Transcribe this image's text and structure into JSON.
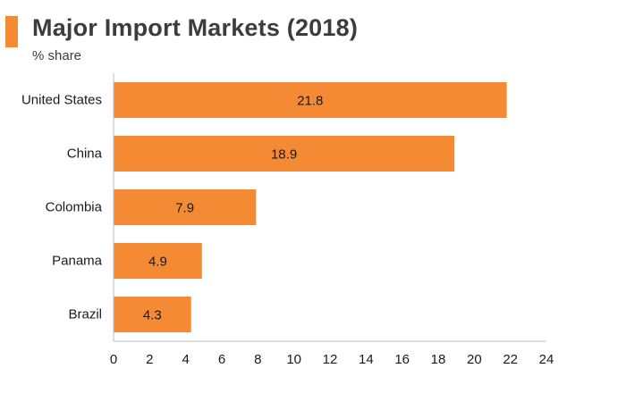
{
  "accent_color": "#F58A34",
  "bar_color": "#F58A34",
  "axis_color": "#bdbdbd",
  "chart_data": {
    "type": "bar",
    "orientation": "horizontal",
    "title": "Major Import Markets (2018)",
    "subtitle": "% share",
    "categories": [
      "United States",
      "China",
      "Colombia",
      "Panama",
      "Brazil"
    ],
    "values": [
      21.8,
      18.9,
      7.9,
      4.9,
      4.3
    ],
    "data_labels": [
      "21.8",
      "18.9",
      "7.9",
      "4.9",
      "4.3"
    ],
    "xlim": [
      0,
      24
    ],
    "xticks": [
      "0",
      "2",
      "4",
      "6",
      "8",
      "10",
      "12",
      "14",
      "16",
      "18",
      "20",
      "22",
      "24"
    ],
    "grid": false,
    "legend": "none"
  }
}
